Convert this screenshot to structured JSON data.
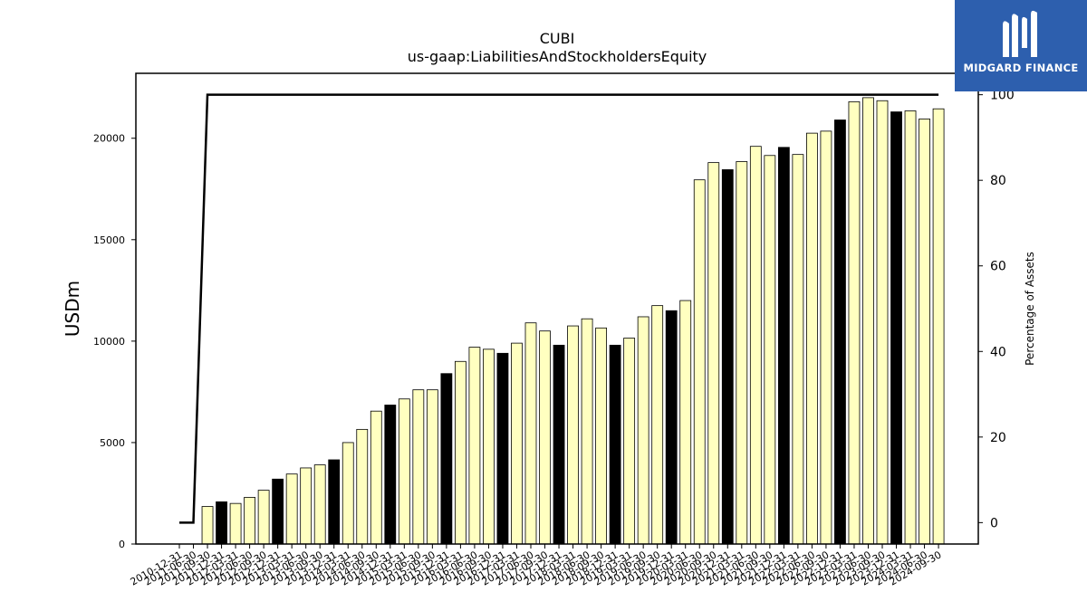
{
  "chart_data": {
    "type": "bar",
    "title": "CUBI",
    "subtitle": "us-gaap:LiabilitiesAndStockholdersEquity",
    "ylabel": "USDm",
    "y2label": "Percentage of Assets",
    "ylim": [
      0,
      23200
    ],
    "y2lim": [
      -5,
      105
    ],
    "yticks": [
      0,
      5000,
      10000,
      15000,
      20000
    ],
    "y2ticks": [
      0,
      20,
      40,
      60,
      80,
      100
    ],
    "categories": [
      "2010-12-31",
      "2011-06-30",
      "2011-09-30",
      "2011-12-31",
      "2012-03-31",
      "2012-06-30",
      "2012-09-30",
      "2012-12-31",
      "2013-03-31",
      "2013-06-30",
      "2013-09-30",
      "2013-12-31",
      "2014-03-31",
      "2014-06-30",
      "2014-09-30",
      "2014-12-31",
      "2015-03-31",
      "2015-06-30",
      "2015-09-30",
      "2015-12-31",
      "2016-03-31",
      "2016-06-30",
      "2016-09-30",
      "2016-12-31",
      "2017-03-31",
      "2017-06-30",
      "2017-09-30",
      "2017-12-31",
      "2018-03-31",
      "2018-06-30",
      "2018-09-30",
      "2018-12-31",
      "2019-03-31",
      "2019-06-30",
      "2019-09-30",
      "2019-12-31",
      "2020-03-31",
      "2020-06-30",
      "2020-09-30",
      "2020-12-31",
      "2021-03-31",
      "2021-06-30",
      "2021-09-30",
      "2021-12-31",
      "2022-03-31",
      "2022-06-30",
      "2022-09-30",
      "2022-12-31",
      "2023-03-31",
      "2023-06-30",
      "2023-09-30",
      "2023-12-31",
      "2024-03-31",
      "2024-06-30",
      "2024-09-30"
    ],
    "series": [
      {
        "type": "bar",
        "values": [
          null,
          null,
          1850,
          2080,
          2000,
          2300,
          2650,
          3200,
          3450,
          3750,
          3900,
          4150,
          5000,
          5650,
          6550,
          6850,
          7150,
          7600,
          7600,
          8400,
          9000,
          9700,
          9600,
          9400,
          9900,
          10900,
          10500,
          9800,
          10750,
          11100,
          10650,
          9800,
          10150,
          11200,
          11750,
          11500,
          12000,
          17950,
          18800,
          18450,
          18850,
          19600,
          19150,
          19550,
          19200,
          20250,
          20350,
          20900,
          21800,
          22000,
          21850,
          21300,
          21350,
          20950,
          21450
        ],
        "highlight": [
          false,
          false,
          false,
          true,
          false,
          false,
          false,
          true,
          false,
          false,
          false,
          true,
          false,
          false,
          false,
          true,
          false,
          false,
          false,
          true,
          false,
          false,
          false,
          true,
          false,
          false,
          false,
          true,
          false,
          false,
          false,
          true,
          false,
          false,
          false,
          true,
          false,
          false,
          false,
          true,
          false,
          false,
          false,
          true,
          false,
          false,
          false,
          true,
          false,
          false,
          false,
          true,
          false,
          false,
          false
        ]
      },
      {
        "type": "line",
        "axis": "right",
        "values": [
          0,
          0,
          100,
          100,
          100,
          100,
          100,
          100,
          100,
          100,
          100,
          100,
          100,
          100,
          100,
          100,
          100,
          100,
          100,
          100,
          100,
          100,
          100,
          100,
          100,
          100,
          100,
          100,
          100,
          100,
          100,
          100,
          100,
          100,
          100,
          100,
          100,
          100,
          100,
          100,
          100,
          100,
          100,
          100,
          100,
          100,
          100,
          100,
          100,
          100,
          100,
          100,
          100,
          100,
          100
        ]
      }
    ],
    "colors": {
      "bar": "#ffffc0",
      "bar_highlight": "#000000",
      "line": "#000000"
    }
  },
  "logo": {
    "text": "MIDGARD FINANCE",
    "background": "#2d5fae"
  }
}
